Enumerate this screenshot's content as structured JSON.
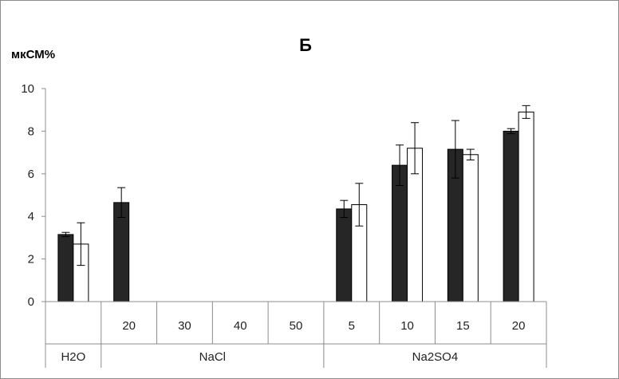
{
  "chart_data": {
    "type": "bar",
    "title": "Б",
    "ylabel": "мкСМ%",
    "ylim": [
      0,
      10
    ],
    "yticks": [
      0,
      2,
      4,
      6,
      8,
      10
    ],
    "categories": [
      "",
      "20",
      "30",
      "40",
      "50",
      "5",
      "10",
      "15",
      "20"
    ],
    "groups": [
      {
        "label": "H2O",
        "span": 1
      },
      {
        "label": "NaCl",
        "span": 4
      },
      {
        "label": "Na2SO4",
        "span": 4
      }
    ],
    "series": [
      {
        "color": "#262626",
        "values": [
          3.15,
          4.65,
          null,
          null,
          null,
          4.35,
          6.4,
          7.15,
          8.0
        ],
        "errors": [
          0.1,
          0.7,
          null,
          null,
          null,
          0.4,
          0.95,
          1.35,
          0.12
        ]
      },
      {
        "color": "#ffffff",
        "values": [
          2.7,
          null,
          null,
          null,
          null,
          4.55,
          7.2,
          6.9,
          8.9
        ],
        "errors": [
          1.0,
          null,
          null,
          null,
          null,
          1.0,
          1.2,
          0.25,
          0.3
        ]
      }
    ],
    "grid": false,
    "legend": "none"
  }
}
